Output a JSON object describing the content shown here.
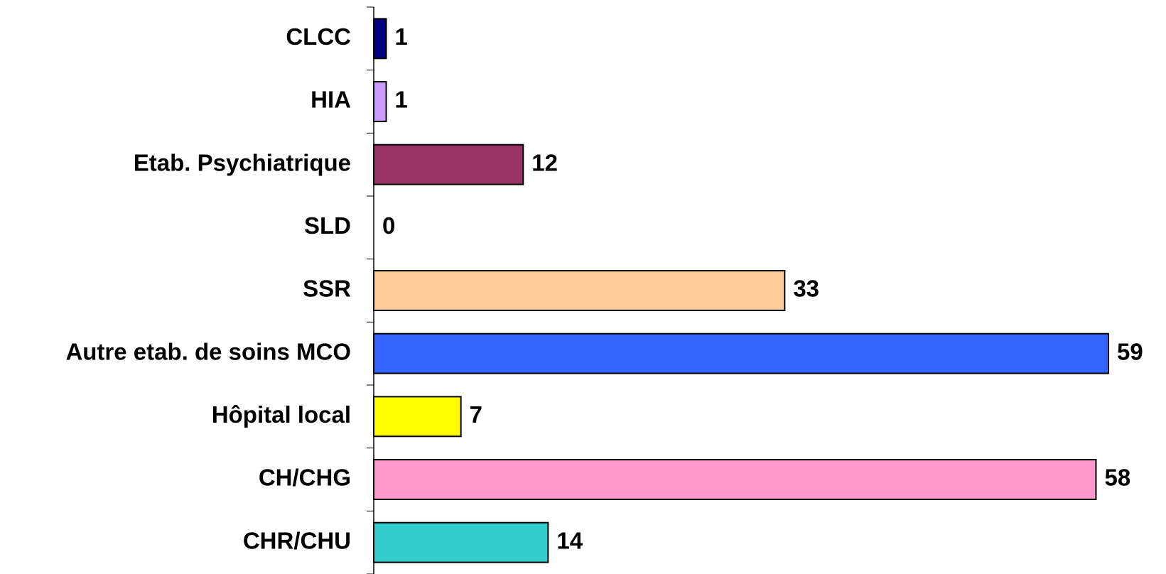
{
  "chart_data": {
    "type": "bar",
    "orientation": "horizontal",
    "categories": [
      "CLCC",
      "HIA",
      "Etab. Psychiatrique",
      "SLD",
      "SSR",
      "Autre etab. de soins MCO",
      "Hôpital local",
      "CH/CHG",
      "CHR/CHU"
    ],
    "values": [
      1,
      1,
      12,
      0,
      33,
      59,
      7,
      58,
      14
    ],
    "colors": [
      "#000080",
      "#cc99ff",
      "#993366",
      "#ccffff",
      "#ffcc99",
      "#3366ff",
      "#ffff00",
      "#ff99cc",
      "#33cccc"
    ]
  }
}
